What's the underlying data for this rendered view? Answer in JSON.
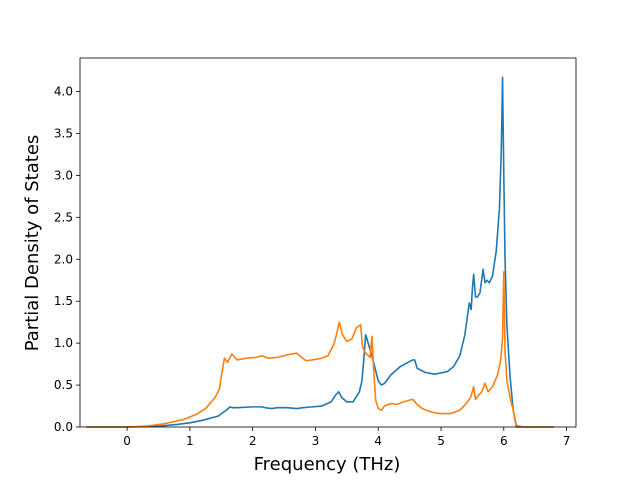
{
  "chart_data": {
    "type": "line",
    "title": "",
    "xlabel": "Frequency (THz)",
    "ylabel": "Partial Density of States",
    "xlim": [
      -0.75,
      7.15
    ],
    "ylim": [
      0,
      4.4
    ],
    "xticks": [
      0,
      1,
      2,
      3,
      4,
      5,
      6,
      7
    ],
    "xtick_labels": [
      "0",
      "1",
      "2",
      "3",
      "4",
      "5",
      "6",
      "7"
    ],
    "yticks": [
      0,
      0.5,
      1,
      1.5,
      2,
      2.5,
      3,
      3.5,
      4
    ],
    "ytick_labels": [
      "0.0",
      "0.5",
      "1.0",
      "1.5",
      "2.0",
      "2.5",
      "3.0",
      "3.5",
      "4.0"
    ],
    "grid": false,
    "legend": "none",
    "series": [
      {
        "color": "#1f77b4",
        "x": [
          -0.65,
          0.0,
          0.5,
          0.8,
          1.0,
          1.2,
          1.35,
          1.45,
          1.52,
          1.58,
          1.64,
          1.68,
          1.75,
          2.0,
          2.15,
          2.2,
          2.3,
          2.4,
          2.55,
          2.7,
          2.8,
          2.95,
          3.1,
          3.25,
          3.32,
          3.37,
          3.42,
          3.5,
          3.6,
          3.7,
          3.74,
          3.77,
          3.8,
          3.9,
          4.0,
          4.05,
          4.1,
          4.2,
          4.35,
          4.5,
          4.55,
          4.58,
          4.62,
          4.75,
          4.9,
          5.1,
          5.2,
          5.3,
          5.38,
          5.45,
          5.48,
          5.5,
          5.52,
          5.55,
          5.58,
          5.62,
          5.67,
          5.7,
          5.73,
          5.77,
          5.82,
          5.88,
          5.93,
          5.96,
          5.98,
          6.0,
          6.02,
          6.05,
          6.1,
          6.15,
          6.2,
          6.3,
          6.5,
          6.8
        ],
        "y": [
          0.0,
          0.0,
          0.01,
          0.03,
          0.05,
          0.08,
          0.11,
          0.13,
          0.17,
          0.2,
          0.24,
          0.23,
          0.23,
          0.24,
          0.24,
          0.23,
          0.22,
          0.23,
          0.23,
          0.22,
          0.23,
          0.24,
          0.25,
          0.3,
          0.38,
          0.42,
          0.35,
          0.3,
          0.3,
          0.42,
          0.55,
          0.8,
          1.1,
          0.85,
          0.55,
          0.5,
          0.52,
          0.62,
          0.72,
          0.78,
          0.8,
          0.8,
          0.7,
          0.65,
          0.63,
          0.66,
          0.72,
          0.85,
          1.1,
          1.48,
          1.4,
          1.65,
          1.82,
          1.55,
          1.55,
          1.6,
          1.88,
          1.72,
          1.75,
          1.72,
          1.8,
          2.1,
          2.6,
          3.3,
          4.17,
          3.0,
          2.0,
          1.2,
          0.6,
          0.2,
          0.0,
          0.0,
          0.0,
          0.0
        ]
      },
      {
        "color": "#ff7f0e",
        "x": [
          -0.65,
          0.0,
          0.3,
          0.6,
          0.9,
          1.1,
          1.25,
          1.4,
          1.47,
          1.5,
          1.55,
          1.6,
          1.67,
          1.75,
          1.9,
          2.05,
          2.15,
          2.25,
          2.4,
          2.55,
          2.7,
          2.78,
          2.85,
          2.95,
          3.1,
          3.2,
          3.3,
          3.35,
          3.38,
          3.43,
          3.5,
          3.58,
          3.65,
          3.72,
          3.75,
          3.8,
          3.87,
          3.9,
          3.93,
          3.96,
          4.0,
          4.05,
          4.1,
          4.2,
          4.3,
          4.4,
          4.5,
          4.55,
          4.62,
          4.7,
          4.8,
          4.9,
          5.0,
          5.15,
          5.3,
          5.4,
          5.47,
          5.52,
          5.55,
          5.6,
          5.65,
          5.7,
          5.75,
          5.82,
          5.9,
          5.95,
          5.98,
          6.0,
          6.02,
          6.05,
          6.1,
          6.15,
          6.2,
          6.3,
          6.5,
          6.8
        ],
        "y": [
          0.0,
          0.0,
          0.01,
          0.04,
          0.09,
          0.15,
          0.22,
          0.35,
          0.45,
          0.6,
          0.82,
          0.77,
          0.87,
          0.8,
          0.82,
          0.83,
          0.85,
          0.82,
          0.83,
          0.86,
          0.88,
          0.83,
          0.79,
          0.8,
          0.82,
          0.85,
          1.0,
          1.15,
          1.25,
          1.1,
          1.02,
          1.05,
          1.18,
          1.22,
          0.95,
          0.88,
          0.83,
          1.08,
          0.65,
          0.32,
          0.22,
          0.2,
          0.25,
          0.28,
          0.27,
          0.3,
          0.32,
          0.33,
          0.27,
          0.22,
          0.19,
          0.17,
          0.16,
          0.16,
          0.2,
          0.28,
          0.35,
          0.48,
          0.33,
          0.38,
          0.42,
          0.52,
          0.42,
          0.48,
          0.62,
          0.8,
          1.05,
          1.85,
          0.9,
          0.55,
          0.35,
          0.2,
          0.02,
          0.0,
          0.0,
          0.0
        ]
      }
    ]
  }
}
